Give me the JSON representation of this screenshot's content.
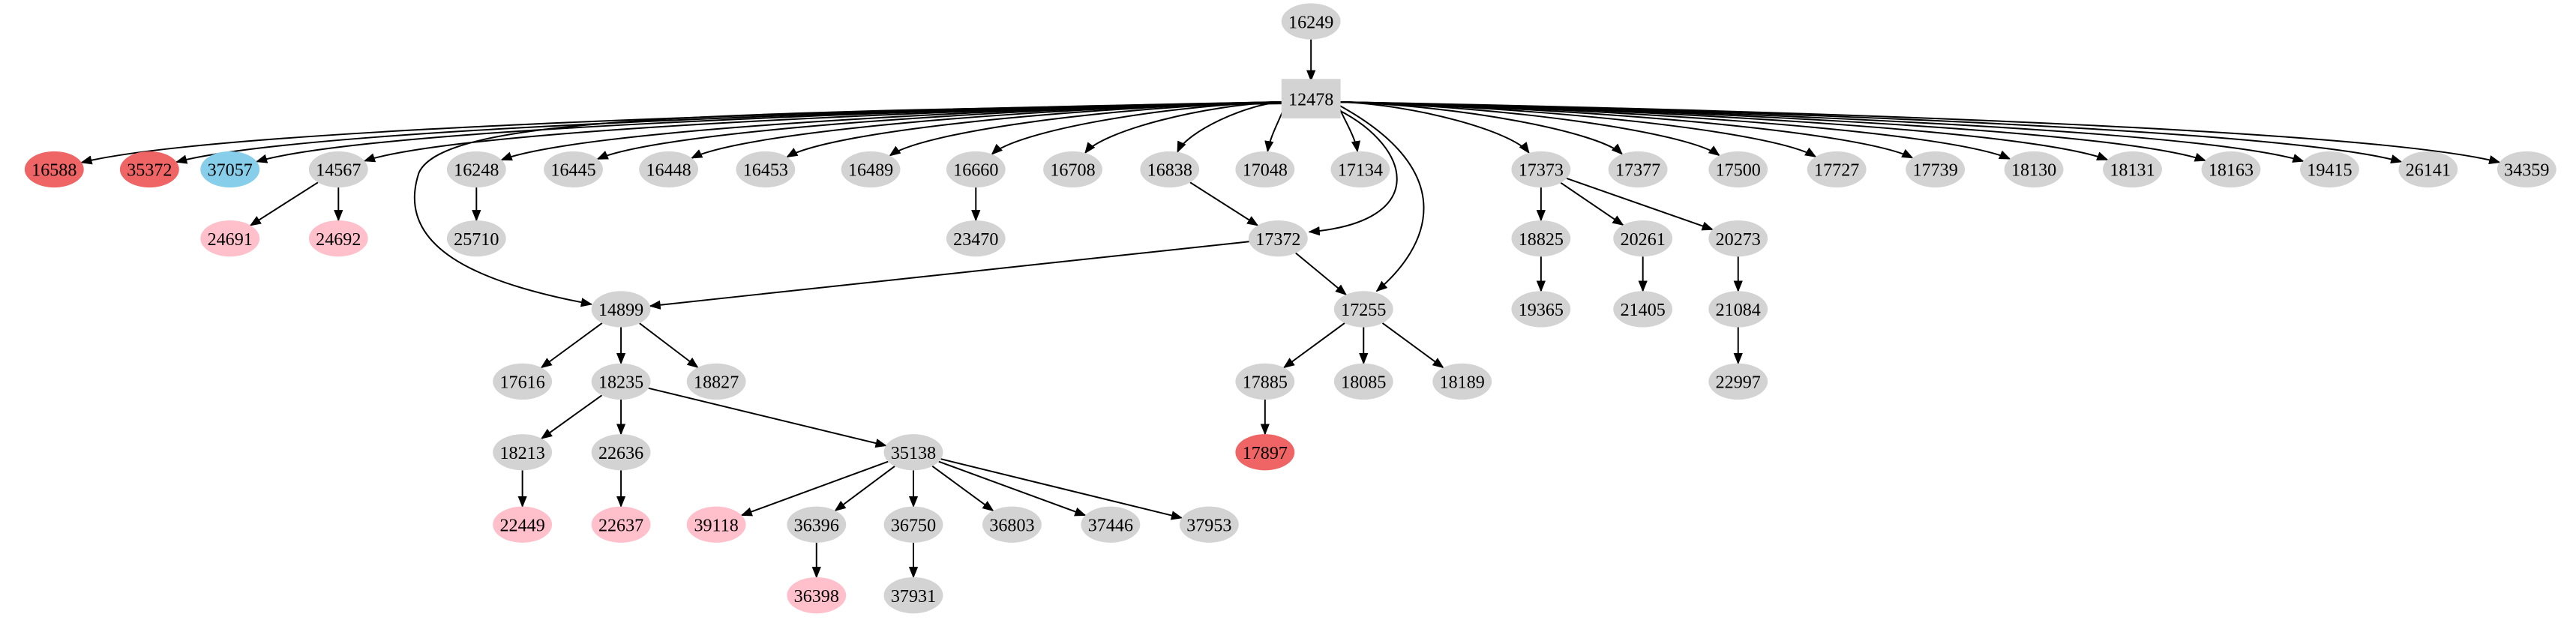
{
  "colors": {
    "default": "#d3d3d3",
    "red": "#ef6464",
    "blue": "#87ceeb",
    "pink": "#ffc0cb",
    "edge": "#000000"
  },
  "nodes": [
    {
      "id": "16249",
      "color": "default",
      "shape": "ellipse"
    },
    {
      "id": "12478",
      "color": "default",
      "shape": "box"
    },
    {
      "id": "16588",
      "color": "red",
      "shape": "ellipse"
    },
    {
      "id": "35372",
      "color": "red",
      "shape": "ellipse"
    },
    {
      "id": "37057",
      "color": "blue",
      "shape": "ellipse"
    },
    {
      "id": "14567",
      "color": "default",
      "shape": "ellipse"
    },
    {
      "id": "16248",
      "color": "default",
      "shape": "ellipse"
    },
    {
      "id": "16445",
      "color": "default",
      "shape": "ellipse"
    },
    {
      "id": "16448",
      "color": "default",
      "shape": "ellipse"
    },
    {
      "id": "16453",
      "color": "default",
      "shape": "ellipse"
    },
    {
      "id": "16489",
      "color": "default",
      "shape": "ellipse"
    },
    {
      "id": "16660",
      "color": "default",
      "shape": "ellipse"
    },
    {
      "id": "16708",
      "color": "default",
      "shape": "ellipse"
    },
    {
      "id": "16838",
      "color": "default",
      "shape": "ellipse"
    },
    {
      "id": "17048",
      "color": "default",
      "shape": "ellipse"
    },
    {
      "id": "17134",
      "color": "default",
      "shape": "ellipse"
    },
    {
      "id": "17373",
      "color": "default",
      "shape": "ellipse"
    },
    {
      "id": "17377",
      "color": "default",
      "shape": "ellipse"
    },
    {
      "id": "17500",
      "color": "default",
      "shape": "ellipse"
    },
    {
      "id": "17727",
      "color": "default",
      "shape": "ellipse"
    },
    {
      "id": "17739",
      "color": "default",
      "shape": "ellipse"
    },
    {
      "id": "18130",
      "color": "default",
      "shape": "ellipse"
    },
    {
      "id": "18131",
      "color": "default",
      "shape": "ellipse"
    },
    {
      "id": "18163",
      "color": "default",
      "shape": "ellipse"
    },
    {
      "id": "19415",
      "color": "default",
      "shape": "ellipse"
    },
    {
      "id": "26141",
      "color": "default",
      "shape": "ellipse"
    },
    {
      "id": "34359",
      "color": "default",
      "shape": "ellipse"
    },
    {
      "id": "24691",
      "color": "pink",
      "shape": "ellipse"
    },
    {
      "id": "24692",
      "color": "pink",
      "shape": "ellipse"
    },
    {
      "id": "25710",
      "color": "default",
      "shape": "ellipse"
    },
    {
      "id": "23470",
      "color": "default",
      "shape": "ellipse"
    },
    {
      "id": "17372",
      "color": "default",
      "shape": "ellipse"
    },
    {
      "id": "18825",
      "color": "default",
      "shape": "ellipse"
    },
    {
      "id": "20261",
      "color": "default",
      "shape": "ellipse"
    },
    {
      "id": "20273",
      "color": "default",
      "shape": "ellipse"
    },
    {
      "id": "14899",
      "color": "default",
      "shape": "ellipse"
    },
    {
      "id": "17255",
      "color": "default",
      "shape": "ellipse"
    },
    {
      "id": "19365",
      "color": "default",
      "shape": "ellipse"
    },
    {
      "id": "21405",
      "color": "default",
      "shape": "ellipse"
    },
    {
      "id": "21084",
      "color": "default",
      "shape": "ellipse"
    },
    {
      "id": "17616",
      "color": "default",
      "shape": "ellipse"
    },
    {
      "id": "18235",
      "color": "default",
      "shape": "ellipse"
    },
    {
      "id": "18827",
      "color": "default",
      "shape": "ellipse"
    },
    {
      "id": "17885",
      "color": "default",
      "shape": "ellipse"
    },
    {
      "id": "18085",
      "color": "default",
      "shape": "ellipse"
    },
    {
      "id": "18189",
      "color": "default",
      "shape": "ellipse"
    },
    {
      "id": "22997",
      "color": "default",
      "shape": "ellipse"
    },
    {
      "id": "18213",
      "color": "default",
      "shape": "ellipse"
    },
    {
      "id": "22636",
      "color": "default",
      "shape": "ellipse"
    },
    {
      "id": "35138",
      "color": "default",
      "shape": "ellipse"
    },
    {
      "id": "17897",
      "color": "red",
      "shape": "ellipse"
    },
    {
      "id": "22449",
      "color": "pink",
      "shape": "ellipse"
    },
    {
      "id": "22637",
      "color": "pink",
      "shape": "ellipse"
    },
    {
      "id": "39118",
      "color": "pink",
      "shape": "ellipse"
    },
    {
      "id": "36396",
      "color": "default",
      "shape": "ellipse"
    },
    {
      "id": "36750",
      "color": "default",
      "shape": "ellipse"
    },
    {
      "id": "36803",
      "color": "default",
      "shape": "ellipse"
    },
    {
      "id": "37446",
      "color": "default",
      "shape": "ellipse"
    },
    {
      "id": "37953",
      "color": "default",
      "shape": "ellipse"
    },
    {
      "id": "36398",
      "color": "pink",
      "shape": "ellipse"
    },
    {
      "id": "37931",
      "color": "default",
      "shape": "ellipse"
    }
  ],
  "edges": [
    [
      "16249",
      "12478"
    ],
    [
      "12478",
      "16588"
    ],
    [
      "12478",
      "35372"
    ],
    [
      "12478",
      "37057"
    ],
    [
      "12478",
      "14567"
    ],
    [
      "12478",
      "16248"
    ],
    [
      "12478",
      "16445"
    ],
    [
      "12478",
      "16448"
    ],
    [
      "12478",
      "16453"
    ],
    [
      "12478",
      "16489"
    ],
    [
      "12478",
      "16660"
    ],
    [
      "12478",
      "16708"
    ],
    [
      "12478",
      "16838"
    ],
    [
      "12478",
      "17048"
    ],
    [
      "12478",
      "17134"
    ],
    [
      "12478",
      "17373"
    ],
    [
      "12478",
      "17377"
    ],
    [
      "12478",
      "17500"
    ],
    [
      "12478",
      "17727"
    ],
    [
      "12478",
      "17739"
    ],
    [
      "12478",
      "18130"
    ],
    [
      "12478",
      "18131"
    ],
    [
      "12478",
      "18163"
    ],
    [
      "12478",
      "19415"
    ],
    [
      "12478",
      "26141"
    ],
    [
      "12478",
      "34359"
    ],
    [
      "12478",
      "14899"
    ],
    [
      "12478",
      "17372"
    ],
    [
      "12478",
      "17255"
    ],
    [
      "14567",
      "24691"
    ],
    [
      "14567",
      "24692"
    ],
    [
      "16248",
      "25710"
    ],
    [
      "16660",
      "23470"
    ],
    [
      "16838",
      "17372"
    ],
    [
      "17372",
      "14899"
    ],
    [
      "17372",
      "17255"
    ],
    [
      "17373",
      "18825"
    ],
    [
      "17373",
      "20261"
    ],
    [
      "17373",
      "20273"
    ],
    [
      "18825",
      "19365"
    ],
    [
      "20261",
      "21405"
    ],
    [
      "20273",
      "21084"
    ],
    [
      "21084",
      "22997"
    ],
    [
      "14899",
      "17616"
    ],
    [
      "14899",
      "18235"
    ],
    [
      "14899",
      "18827"
    ],
    [
      "17255",
      "17885"
    ],
    [
      "17255",
      "18085"
    ],
    [
      "17255",
      "18189"
    ],
    [
      "17885",
      "17897"
    ],
    [
      "18235",
      "18213"
    ],
    [
      "18235",
      "22636"
    ],
    [
      "18235",
      "35138"
    ],
    [
      "18213",
      "22449"
    ],
    [
      "22636",
      "22637"
    ],
    [
      "35138",
      "39118"
    ],
    [
      "35138",
      "36396"
    ],
    [
      "35138",
      "36750"
    ],
    [
      "35138",
      "36803"
    ],
    [
      "35138",
      "37446"
    ],
    [
      "35138",
      "37953"
    ],
    [
      "36396",
      "36398"
    ],
    [
      "36750",
      "37931"
    ]
  ]
}
